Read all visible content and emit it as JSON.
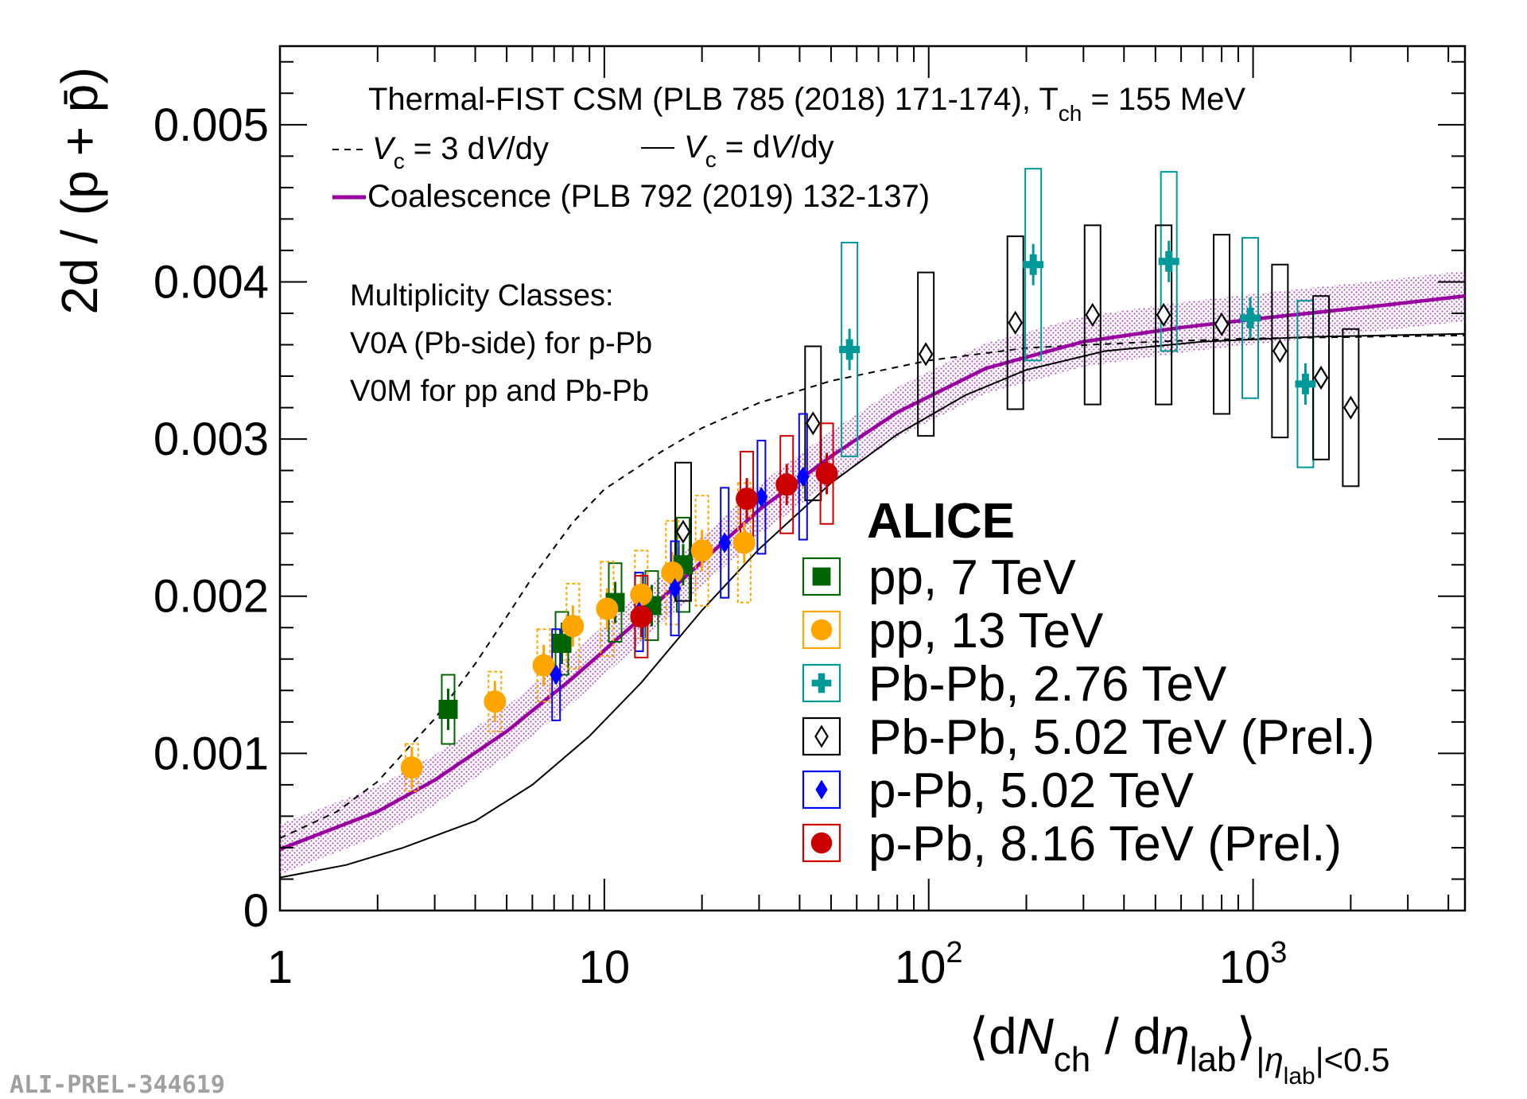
{
  "chart_data": {
    "type": "scatter",
    "x_scale": "log",
    "xlim": [
      1,
      4500
    ],
    "ylim": [
      0,
      0.0055
    ],
    "ylabel": "2d / (p + p̄)",
    "xlabel": {
      "open": "⟨d",
      "N": "N",
      "ch": "ch",
      "mid": " / d",
      "eta": "η",
      "lab": "lab",
      "close": "⟩",
      "sub_bar1": "|",
      "sub_eta": "η",
      "sub_lab": "lab",
      "sub_rest": "|<0.5"
    },
    "y_ticks": [
      {
        "value": 0,
        "label": "0"
      },
      {
        "value": 0.001,
        "label": "0.001"
      },
      {
        "value": 0.002,
        "label": "0.002"
      },
      {
        "value": 0.003,
        "label": "0.003"
      },
      {
        "value": 0.004,
        "label": "0.004"
      },
      {
        "value": 0.005,
        "label": "0.005"
      }
    ],
    "x_ticks": [
      {
        "value": 1,
        "base": "1",
        "exp": ""
      },
      {
        "value": 10,
        "base": "10",
        "exp": ""
      },
      {
        "value": 100,
        "base": "10",
        "exp": "2"
      },
      {
        "value": 1000,
        "base": "10",
        "exp": "3"
      }
    ],
    "annotations": {
      "model_line": {
        "pre": "Thermal-FIST CSM (PLB 785 (2018) 171-174), T",
        "sub": "ch",
        "post": " = 155 MeV"
      },
      "dashed_label": {
        "pre": "V",
        "sub": "c",
        "mid": " = 3 d",
        "v": "V",
        "post": "/dy"
      },
      "solid_label": {
        "pre": "V",
        "sub": "c",
        "mid": " = d",
        "v": "V",
        "post": "/dy"
      },
      "coalescence_label": "Coalescence (PLB 792 (2019) 132-137)",
      "mult_lines": [
        "Multiplicity Classes:",
        "V0A (Pb-side) for p-Pb",
        "V0M for pp and Pb-Pb"
      ],
      "experiment": "ALICE",
      "watermark": "ALI-PREL-344619"
    },
    "series": [
      {
        "name": "pp, 7 TeV",
        "marker": "square",
        "color": "#006400",
        "points": [
          {
            "x": 3.3,
            "y": 0.00128,
            "sys": 0.00022
          },
          {
            "x": 7.4,
            "y": 0.0017,
            "sys": 0.0002
          },
          {
            "x": 10.8,
            "y": 0.00196,
            "sys": 0.00025
          },
          {
            "x": 14.0,
            "y": 0.00194,
            "sys": 0.00022
          },
          {
            "x": 17.5,
            "y": 0.0022,
            "sys": 0.0003
          }
        ]
      },
      {
        "name": "pp, 13 TeV",
        "marker": "circle",
        "color": "#ffa500",
        "points": [
          {
            "x": 2.55,
            "y": 0.00091,
            "sys": 0.00015
          },
          {
            "x": 4.6,
            "y": 0.00133,
            "sys": 0.00019
          },
          {
            "x": 6.5,
            "y": 0.00156,
            "sys": 0.00023
          },
          {
            "x": 8.0,
            "y": 0.00181,
            "sys": 0.00027
          },
          {
            "x": 10.2,
            "y": 0.00192,
            "sys": 0.0003
          },
          {
            "x": 13.0,
            "y": 0.00201,
            "sys": 0.00028
          },
          {
            "x": 16.2,
            "y": 0.00215,
            "sys": 0.00033
          },
          {
            "x": 20.0,
            "y": 0.00229,
            "sys": 0.00035
          },
          {
            "x": 27.0,
            "y": 0.00234,
            "sys": 0.00038
          }
        ]
      },
      {
        "name": "Pb-Pb, 2.76 TeV",
        "marker": "cross",
        "color": "#009999",
        "points": [
          {
            "x": 57,
            "y": 0.00357,
            "sys": 0.00068
          },
          {
            "x": 210,
            "y": 0.00411,
            "sys": 0.00061
          },
          {
            "x": 550,
            "y": 0.00413,
            "sys": 0.00057
          },
          {
            "x": 980,
            "y": 0.00377,
            "sys": 0.00051
          },
          {
            "x": 1450,
            "y": 0.00335,
            "sys": 0.00053
          }
        ]
      },
      {
        "name": "Pb-Pb, 5.02 TeV (Prel.)",
        "marker": "open-diamond",
        "color": "#000000",
        "points": [
          {
            "x": 17.5,
            "y": 0.00241,
            "sys": 0.00044
          },
          {
            "x": 44,
            "y": 0.0031,
            "sys": 0.00049
          },
          {
            "x": 98,
            "y": 0.00354,
            "sys": 0.00052
          },
          {
            "x": 185,
            "y": 0.00374,
            "sys": 0.00055
          },
          {
            "x": 320,
            "y": 0.00379,
            "sys": 0.00057
          },
          {
            "x": 530,
            "y": 0.00379,
            "sys": 0.00057
          },
          {
            "x": 800,
            "y": 0.00373,
            "sys": 0.00057
          },
          {
            "x": 1210,
            "y": 0.00356,
            "sys": 0.00055
          },
          {
            "x": 1620,
            "y": 0.00339,
            "sys": 0.00052
          },
          {
            "x": 2000,
            "y": 0.0032,
            "sys": 0.0005
          }
        ]
      },
      {
        "name": "p-Pb, 5.02 TeV",
        "marker": "diamond",
        "color": "#0000ff",
        "points": [
          {
            "x": 7.1,
            "y": 0.0015,
            "sys": 0.00029
          },
          {
            "x": 12.8,
            "y": 0.0019,
            "sys": 0.00025
          },
          {
            "x": 16.5,
            "y": 0.00205,
            "sys": 0.0003
          },
          {
            "x": 23.5,
            "y": 0.00234,
            "sys": 0.00035
          },
          {
            "x": 30.5,
            "y": 0.00263,
            "sys": 0.00036
          },
          {
            "x": 41,
            "y": 0.00276,
            "sys": 0.0004
          }
        ]
      },
      {
        "name": "p-Pb, 8.16 TeV (Prel.)",
        "marker": "circle",
        "color": "#cc0000",
        "points": [
          {
            "x": 13.0,
            "y": 0.00187,
            "sys": 0.00026
          },
          {
            "x": 27.5,
            "y": 0.00262,
            "sys": 0.0003
          },
          {
            "x": 36.5,
            "y": 0.00271,
            "sys": 0.00031
          },
          {
            "x": 48.5,
            "y": 0.00278,
            "sys": 0.00032
          }
        ]
      }
    ],
    "curves": [
      {
        "name": "CSM Vc = 3 dV/dy",
        "style": "dashed",
        "color": "#000000",
        "points": [
          [
            1,
            0.00046
          ],
          [
            1.5,
            0.00063
          ],
          [
            2,
            0.00082
          ],
          [
            3,
            0.00122
          ],
          [
            4,
            0.00157
          ],
          [
            5,
            0.00187
          ],
          [
            6,
            0.00212
          ],
          [
            8,
            0.00247
          ],
          [
            10,
            0.00268
          ],
          [
            15,
            0.00292
          ],
          [
            20,
            0.00307
          ],
          [
            30,
            0.00323
          ],
          [
            50,
            0.00337
          ],
          [
            100,
            0.0035
          ],
          [
            200,
            0.00358
          ],
          [
            500,
            0.00362
          ],
          [
            1000,
            0.00364
          ],
          [
            4500,
            0.00366
          ]
        ]
      },
      {
        "name": "CSM Vc = dV/dy",
        "style": "solid",
        "color": "#000000",
        "points": [
          [
            1,
            0.00021
          ],
          [
            1.6,
            0.00029
          ],
          [
            2.4,
            0.0004
          ],
          [
            4,
            0.00057
          ],
          [
            6,
            0.0008
          ],
          [
            9,
            0.00111
          ],
          [
            13,
            0.00145
          ],
          [
            20,
            0.00191
          ],
          [
            30,
            0.0023
          ],
          [
            50,
            0.00272
          ],
          [
            80,
            0.00303
          ],
          [
            130,
            0.00328
          ],
          [
            200,
            0.00344
          ],
          [
            350,
            0.00356
          ],
          [
            700,
            0.00362
          ],
          [
            1500,
            0.00365
          ],
          [
            4500,
            0.00367
          ]
        ]
      },
      {
        "name": "Coalescence (PLB 792 (2019) 132-137)",
        "style": "solid-thick",
        "color": "#9900a0",
        "band": 0.00016,
        "points": [
          [
            1,
            0.00039
          ],
          [
            2,
            0.00063
          ],
          [
            3,
            0.00083
          ],
          [
            5,
            0.00114
          ],
          [
            8,
            0.00148
          ],
          [
            12,
            0.0018
          ],
          [
            20,
            0.00222
          ],
          [
            30,
            0.00255
          ],
          [
            50,
            0.00289
          ],
          [
            80,
            0.00317
          ],
          [
            150,
            0.00345
          ],
          [
            300,
            0.00362
          ],
          [
            600,
            0.00371
          ],
          [
            1200,
            0.00378
          ],
          [
            2500,
            0.00385
          ],
          [
            4500,
            0.00391
          ]
        ]
      }
    ]
  }
}
